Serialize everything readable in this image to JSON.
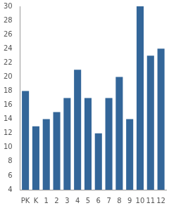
{
  "chart_data": {
    "type": "bar",
    "categories": [
      "PK",
      "K",
      "1",
      "2",
      "3",
      "4",
      "5",
      "6",
      "7",
      "8",
      "9",
      "10",
      "11",
      "12"
    ],
    "values": [
      18,
      13,
      14,
      15,
      17,
      21,
      17,
      12,
      17,
      20,
      14,
      30,
      23,
      24
    ],
    "color": "#336699",
    "ylim": [
      4,
      30
    ],
    "yticks": [
      4,
      6,
      8,
      10,
      12,
      14,
      16,
      18,
      20,
      22,
      24,
      26,
      28,
      30
    ],
    "grid": false
  }
}
